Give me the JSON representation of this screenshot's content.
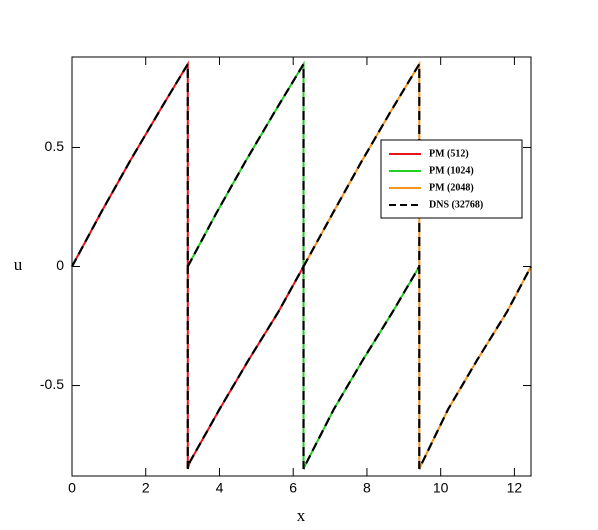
{
  "chart_data": {
    "type": "line",
    "x_label": "x",
    "y_label": "u",
    "xlim": [
      0,
      12.45
    ],
    "ylim": [
      -0.88,
      0.88
    ],
    "xticks": [
      0,
      2,
      4,
      6,
      8,
      10,
      12
    ],
    "yticks": [
      -0.5,
      0,
      0.5
    ],
    "legend_position": "right",
    "series": [
      {
        "name": "PM (512)",
        "color": "#e8141c",
        "dash": false,
        "x": [
          0,
          0.8,
          1.6,
          2.4,
          3.14,
          3.14,
          3.2,
          4,
          4.8,
          5.6,
          6.28
        ],
        "values": [
          0,
          0.23,
          0.45,
          0.66,
          0.85,
          -0.85,
          -0.82,
          -0.6,
          -0.39,
          -0.19,
          0
        ]
      },
      {
        "name": "PM (1024)",
        "color": "#22d022",
        "dash": false,
        "x": [
          3.14,
          3.9,
          4.7,
          5.5,
          6.28,
          6.28,
          6.34,
          7.1,
          7.9,
          8.7,
          9.42
        ],
        "values": [
          0,
          0.22,
          0.44,
          0.65,
          0.85,
          -0.85,
          -0.83,
          -0.6,
          -0.39,
          -0.19,
          0
        ]
      },
      {
        "name": "PM (2048)",
        "color": "#f7941d",
        "dash": false,
        "x": [
          6.28,
          7.06,
          7.85,
          8.64,
          9.42,
          9.42,
          9.48,
          10.2,
          11,
          11.8,
          12.45
        ],
        "values": [
          0,
          0.22,
          0.44,
          0.65,
          0.85,
          -0.85,
          -0.83,
          -0.6,
          -0.39,
          -0.19,
          0
        ]
      },
      {
        "name": "DNS (32768)",
        "color": "#000000",
        "dash": true,
        "x": [
          0,
          0.8,
          1.6,
          2.4,
          3.14,
          3.14,
          3.2,
          4,
          4.8,
          5.6,
          6.28,
          null,
          3.14,
          3.9,
          4.7,
          5.5,
          6.28,
          6.28,
          6.34,
          7.1,
          7.9,
          8.7,
          9.42,
          null,
          6.28,
          7.06,
          7.85,
          8.64,
          9.42,
          9.42,
          9.48,
          10.2,
          11,
          11.8,
          12.45
        ],
        "values": [
          0,
          0.23,
          0.45,
          0.66,
          0.85,
          -0.85,
          -0.82,
          -0.6,
          -0.39,
          -0.19,
          0,
          null,
          0,
          0.22,
          0.44,
          0.65,
          0.85,
          -0.85,
          -0.83,
          -0.6,
          -0.39,
          -0.19,
          0,
          null,
          0,
          0.22,
          0.44,
          0.65,
          0.85,
          -0.85,
          -0.83,
          -0.6,
          -0.39,
          -0.19,
          0
        ]
      }
    ]
  }
}
